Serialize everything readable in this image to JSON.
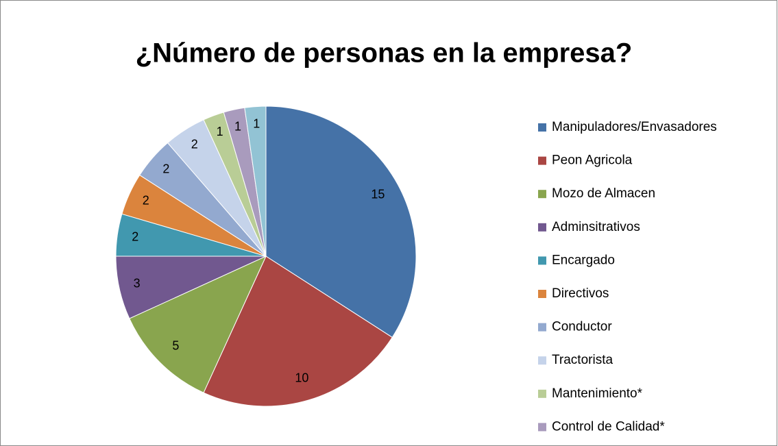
{
  "chart_data": {
    "type": "pie",
    "title": "¿Número de personas en la empresa?",
    "categories": [
      "Manipuladores/Envasadores",
      "Peon Agricola",
      "Mozo de Almacen",
      "Adminsitrativos",
      "Encargado",
      "Directivos",
      "Conductor",
      "Tractorista",
      "Mantenimiento*",
      "Control de Calidad*",
      null
    ],
    "values": [
      15,
      10,
      5,
      3,
      2,
      2,
      2,
      2,
      1,
      1,
      1
    ],
    "colors": [
      "#4572a7",
      "#aa4643",
      "#89a54e",
      "#71588f",
      "#4198af",
      "#db843d",
      "#93a9cf",
      "#c5d3ea",
      "#b9cd96",
      "#a99bbd",
      "#92c3d4"
    ],
    "legend": "right"
  }
}
